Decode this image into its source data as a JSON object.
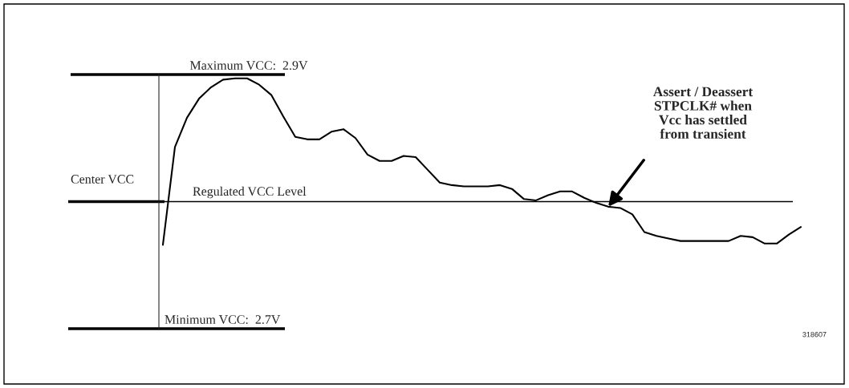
{
  "chart_data": {
    "type": "line",
    "categories": [
      null,
      null,
      null,
      null,
      null,
      null,
      null,
      null,
      null,
      null,
      null,
      null,
      null,
      null,
      null,
      null,
      null,
      null,
      null,
      null,
      null,
      null,
      null,
      null,
      null,
      null,
      null,
      null,
      null,
      null,
      null,
      null,
      null,
      null,
      null,
      null,
      null,
      null,
      null,
      null,
      null,
      null,
      null,
      null,
      null,
      null,
      null,
      null,
      null,
      null,
      null,
      null,
      null,
      null
    ],
    "series": [
      {
        "color": "#000000",
        "values": [
          2.766,
          2.843,
          2.866,
          2.881,
          2.89,
          2.896,
          2.897,
          2.897,
          2.892,
          2.884,
          2.867,
          2.851,
          2.849,
          2.849,
          2.855,
          2.857,
          2.85,
          2.837,
          2.832,
          2.832,
          2.836,
          2.835,
          2.825,
          2.815,
          2.813,
          2.812,
          2.812,
          2.812,
          2.813,
          2.81,
          2.802,
          2.801,
          2.805,
          2.808,
          2.808,
          2.803,
          2.799,
          2.796,
          2.795,
          2.79,
          2.776,
          2.773,
          2.771,
          2.769,
          2.769,
          2.769,
          2.769,
          2.769,
          2.773,
          2.772,
          2.767,
          2.767,
          2.774,
          2.78
        ]
      }
    ],
    "ylim": [
      2.7,
      2.9
    ],
    "legend": false,
    "marker": "none",
    "line_style": "solid",
    "ref_lines": [
      {
        "axis": "y",
        "value": 2.9,
        "label": "Maximum VCC:  2.9V"
      },
      {
        "axis": "y",
        "value": 2.8,
        "label": "Center VCC"
      },
      {
        "axis": "y",
        "value": 2.7,
        "label": "Minimum VCC:  2.7V"
      }
    ],
    "annotations": [
      "Assert / Deassert\nSTPCLK# when\nVcc has settled\nfrom transient",
      {
        "text": "Regulated VCC Level",
        "y": 2.8
      },
      "318607"
    ]
  }
}
